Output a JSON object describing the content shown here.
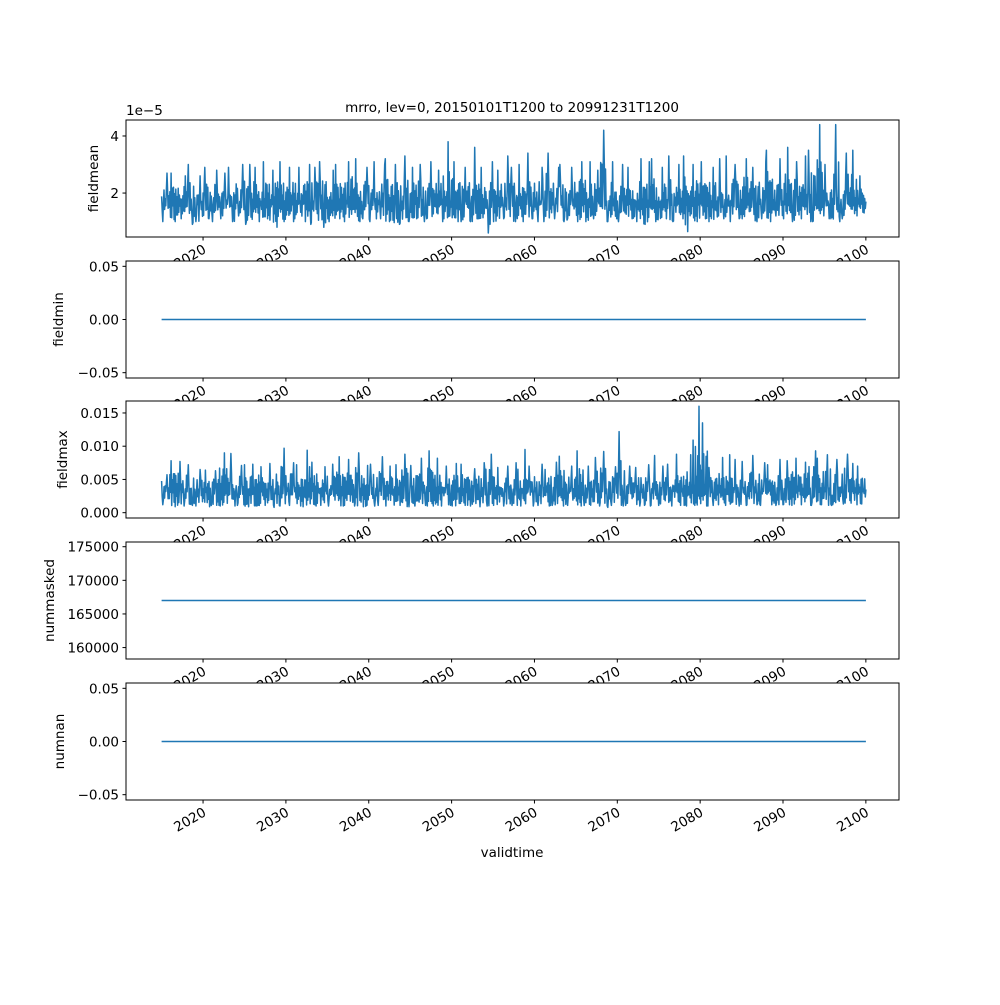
{
  "title": "mrro, lev=0, 20150101T1200 to 20991231T1200",
  "xlabel": "validtime",
  "line_color": "#1f77b4",
  "chart_data": [
    {
      "type": "line",
      "ylabel": "fieldmean",
      "offset_text": "1e−5",
      "scale": 1e-05,
      "xlim": [
        2010.7,
        2104.0
      ],
      "ylim": [
        0.46,
        4.56
      ],
      "yticks": [
        {
          "v": 2,
          "label": "2"
        },
        {
          "v": 4,
          "label": "4"
        }
      ],
      "series": {
        "name": "fieldmean",
        "start_year": 2015,
        "baseline": 1.7,
        "yearly_peaks": [
          2.7,
          2.7,
          2.6,
          3.0,
          2.6,
          2.9,
          2.8,
          2.7,
          2.9,
          3.0,
          3.0,
          2.9,
          3.1,
          2.8,
          3.1,
          2.9,
          2.9,
          3.0,
          2.9,
          3.1,
          2.8,
          3.0,
          3.1,
          3.2,
          2.9,
          3.1,
          3.0,
          3.2,
          3.0,
          3.3,
          2.9,
          3.0,
          3.1,
          2.8,
          3.8,
          3.1,
          2.9,
          3.6,
          2.9,
          3.1,
          2.8,
          3.3,
          2.9,
          3.0,
          3.4,
          2.9,
          3.4,
          2.9,
          3.0,
          2.9,
          3.1,
          3.1,
          2.8,
          4.2,
          3.1,
          3.0,
          2.9,
          3.2,
          3.1,
          3.2,
          2.9,
          3.3,
          3.0,
          3.3,
          3.0,
          3.1,
          2.9,
          3.2,
          3.3,
          3.0,
          3.2,
          2.9,
          3.1,
          3.5,
          3.2,
          3.6,
          3.1,
          3.3,
          3.5,
          4.4,
          3.0,
          4.4,
          3.4,
          3.5,
          2.6
        ],
        "yearly_troughs": [
          1.0,
          1.0,
          1.1,
          0.9,
          1.0,
          1.1,
          1.0,
          1.1,
          1.0,
          1.2,
          0.9,
          1.0,
          1.1,
          0.8,
          1.0,
          1.0,
          1.1,
          1.0,
          0.9,
          0.8,
          1.0,
          1.1,
          1.0,
          1.0,
          1.1,
          1.0,
          1.1,
          1.0,
          0.9,
          1.0,
          1.1,
          1.0,
          1.1,
          1.0,
          1.1,
          1.0,
          1.0,
          1.0,
          1.1,
          0.6,
          1.0,
          1.1,
          1.0,
          1.0,
          1.1,
          1.0,
          1.0,
          1.1,
          1.0,
          1.1,
          1.0,
          1.0,
          1.1,
          1.0,
          1.1,
          1.0,
          1.1,
          1.0,
          0.9,
          1.0,
          1.1,
          1.0,
          1.1,
          0.65,
          1.0,
          1.1,
          1.0,
          1.1,
          1.0,
          1.1,
          1.1,
          1.0,
          1.1,
          1.0,
          1.2,
          1.1,
          1.0,
          1.1,
          1.0,
          1.2,
          1.1,
          1.0,
          1.1,
          1.2,
          1.3
        ]
      }
    },
    {
      "type": "line",
      "ylabel": "fieldmin",
      "xlim": [
        2010.7,
        2104.0
      ],
      "ylim": [
        -0.055,
        0.055
      ],
      "yticks": [
        {
          "v": -0.05,
          "label": "−0.05"
        },
        {
          "v": 0,
          "label": "0.00"
        },
        {
          "v": 0.05,
          "label": "0.05"
        }
      ],
      "series": {
        "name": "fieldmin",
        "x": [
          2015.0,
          2100.0
        ],
        "y": [
          0,
          0
        ]
      }
    },
    {
      "type": "line",
      "ylabel": "fieldmax",
      "xlim": [
        2010.7,
        2104.0
      ],
      "ylim": [
        -0.0008,
        0.0168
      ],
      "yticks": [
        {
          "v": 0,
          "label": "0.000"
        },
        {
          "v": 0.005,
          "label": "0.005"
        },
        {
          "v": 0.01,
          "label": "0.010"
        },
        {
          "v": 0.015,
          "label": "0.015"
        }
      ],
      "series": {
        "name": "fieldmax",
        "start_year": 2015,
        "baseline": 0.0035,
        "yearly_peaks": [
          0.0057,
          0.0078,
          0.0077,
          0.0072,
          0.0065,
          0.0064,
          0.0063,
          0.009,
          0.0089,
          0.0071,
          0.0072,
          0.0073,
          0.0069,
          0.0074,
          0.0097,
          0.0075,
          0.0072,
          0.0094,
          0.0076,
          0.0069,
          0.0073,
          0.0084,
          0.008,
          0.009,
          0.0071,
          0.0073,
          0.0084,
          0.007,
          0.0072,
          0.0088,
          0.0071,
          0.0082,
          0.0093,
          0.0082,
          0.007,
          0.0074,
          0.0073,
          0.0066,
          0.0075,
          0.0088,
          0.0068,
          0.007,
          0.0075,
          0.0095,
          0.007,
          0.0073,
          0.0065,
          0.0076,
          0.0085,
          0.007,
          0.0093,
          0.007,
          0.0083,
          0.0092,
          0.0069,
          0.0122,
          0.007,
          0.0068,
          0.0072,
          0.0086,
          0.007,
          0.0073,
          0.0088,
          0.0087,
          0.016,
          0.0135,
          0.0068,
          0.0083,
          0.0087,
          0.008,
          0.0077,
          0.0086,
          0.0075,
          0.0072,
          0.008,
          0.0078,
          0.0082,
          0.0076,
          0.0093,
          0.0082,
          0.0087,
          0.008,
          0.0088,
          0.0074,
          0.007
        ],
        "yearly_troughs": [
          0.0012,
          0.0009,
          0.001,
          0.0011,
          0.001,
          0.0009,
          0.0011,
          0.001,
          0.001,
          0.0011,
          0.0009,
          0.001,
          0.0011,
          0.0008,
          0.001,
          0.0011,
          0.001,
          0.0009,
          0.001,
          0.0011,
          0.001,
          0.001,
          0.0011,
          0.001,
          0.0009,
          0.001,
          0.0011,
          0.001,
          0.0011,
          0.0009,
          0.001,
          0.0011,
          0.001,
          0.001,
          0.0011,
          0.001,
          0.0011,
          0.001,
          0.0009,
          0.001,
          0.0011,
          0.001,
          0.0011,
          0.001,
          0.001,
          0.0011,
          0.001,
          0.0011,
          0.001,
          0.0011,
          0.001,
          0.0011,
          0.001,
          0.0008,
          0.0011,
          0.001,
          0.0011,
          0.001,
          0.0011,
          0.001,
          0.0011,
          0.001,
          0.0011,
          0.001,
          0.0011,
          0.001,
          0.0011,
          0.0012,
          0.0011,
          0.001,
          0.0011,
          0.0012,
          0.0011,
          0.0012,
          0.0011,
          0.0012,
          0.0011,
          0.0012,
          0.0011,
          0.0012,
          0.0011,
          0.0012,
          0.0013,
          0.0012,
          0.0013
        ]
      }
    },
    {
      "type": "line",
      "ylabel": "nummasked",
      "xlim": [
        2010.7,
        2104.0
      ],
      "ylim": [
        158300,
        175700
      ],
      "yticks": [
        {
          "v": 160000,
          "label": "160000"
        },
        {
          "v": 165000,
          "label": "165000"
        },
        {
          "v": 170000,
          "label": "170000"
        },
        {
          "v": 175000,
          "label": "175000"
        }
      ],
      "series": {
        "name": "nummasked",
        "x": [
          2015.0,
          2100.0
        ],
        "y": [
          167000,
          167000
        ]
      }
    },
    {
      "type": "line",
      "ylabel": "numnan",
      "xlim": [
        2010.7,
        2104.0
      ],
      "ylim": [
        -0.055,
        0.055
      ],
      "yticks": [
        {
          "v": -0.05,
          "label": "−0.05"
        },
        {
          "v": 0,
          "label": "0.00"
        },
        {
          "v": 0.05,
          "label": "0.05"
        }
      ],
      "series": {
        "name": "numnan",
        "x": [
          2015.0,
          2100.0
        ],
        "y": [
          0,
          0
        ]
      }
    }
  ],
  "xticks": [
    {
      "v": 2020,
      "label": "2020"
    },
    {
      "v": 2030,
      "label": "2030"
    },
    {
      "v": 2040,
      "label": "2040"
    },
    {
      "v": 2050,
      "label": "2050"
    },
    {
      "v": 2060,
      "label": "2060"
    },
    {
      "v": 2070,
      "label": "2070"
    },
    {
      "v": 2080,
      "label": "2080"
    },
    {
      "v": 2090,
      "label": "2090"
    },
    {
      "v": 2100,
      "label": "2100"
    }
  ]
}
